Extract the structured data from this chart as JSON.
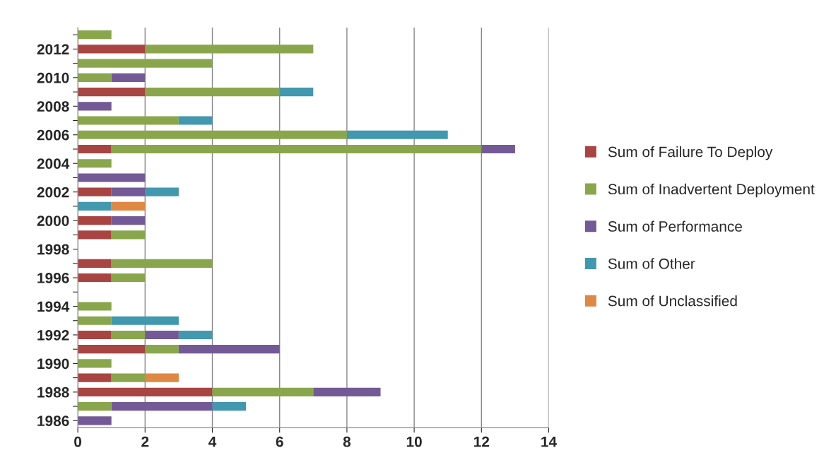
{
  "chart_data": {
    "type": "bar",
    "orientation": "horizontal",
    "stacked": true,
    "categories": [
      null,
      "2012",
      null,
      "2010",
      null,
      "2008",
      null,
      "2006",
      null,
      "2004",
      null,
      "2002",
      null,
      "2000",
      null,
      "1998",
      null,
      "1996",
      null,
      "1994",
      null,
      "1992",
      null,
      "1990",
      null,
      "1988",
      null,
      "1986"
    ],
    "series": [
      {
        "name": "Sum of Failure To Deploy",
        "color": "#a84442",
        "values": [
          null,
          2,
          null,
          null,
          2,
          null,
          null,
          null,
          1,
          null,
          null,
          1,
          null,
          1,
          1,
          null,
          1,
          1,
          null,
          null,
          null,
          1,
          2,
          null,
          1,
          4,
          null,
          null
        ]
      },
      {
        "name": "Sum of Inadvertent Deployment",
        "color": "#8aa64c",
        "values": [
          1,
          5,
          4,
          1,
          4,
          null,
          3,
          8,
          11,
          1,
          null,
          null,
          null,
          null,
          1,
          null,
          3,
          1,
          null,
          1,
          1,
          1,
          1,
          1,
          1,
          3,
          1,
          null
        ]
      },
      {
        "name": "Sum of Performance",
        "color": "#735a96",
        "values": [
          null,
          null,
          null,
          1,
          null,
          1,
          null,
          null,
          1,
          null,
          2,
          1,
          null,
          1,
          null,
          null,
          null,
          null,
          null,
          null,
          null,
          1,
          3,
          null,
          null,
          2,
          3,
          1
        ]
      },
      {
        "name": "Sum of Other",
        "color": "#4198af",
        "values": [
          null,
          null,
          null,
          null,
          1,
          null,
          1,
          3,
          null,
          null,
          null,
          1,
          1,
          null,
          null,
          null,
          null,
          null,
          null,
          null,
          2,
          1,
          null,
          null,
          null,
          null,
          1,
          null
        ]
      },
      {
        "name": "Sum of Unclassified",
        "color": "#de8844",
        "values": [
          null,
          null,
          null,
          null,
          null,
          null,
          null,
          null,
          null,
          null,
          null,
          null,
          1,
          null,
          null,
          null,
          null,
          null,
          null,
          null,
          null,
          null,
          null,
          null,
          1,
          null,
          null,
          null
        ]
      }
    ],
    "xlim": [
      0,
      14
    ],
    "xticks": [
      0,
      2,
      4,
      6,
      8,
      10,
      12,
      14
    ],
    "grid": "x",
    "legend": "right"
  }
}
